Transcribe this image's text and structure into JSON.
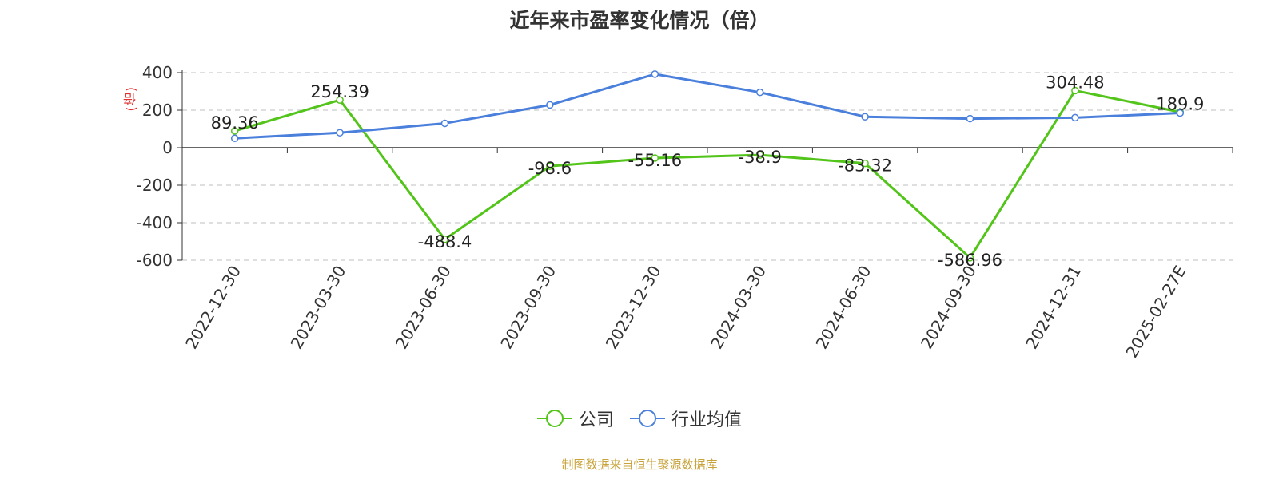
{
  "chart_data": {
    "type": "line",
    "title": "近年来市盈率变化情况（倍）",
    "ylabel": "(倍)",
    "categories": [
      "2022-12-30",
      "2023-03-30",
      "2023-06-30",
      "2023-09-30",
      "2023-12-30",
      "2024-03-30",
      "2024-06-30",
      "2024-09-30",
      "2024-12-31",
      "2025-02-27E"
    ],
    "y_ticks": [
      "400",
      "200",
      "0",
      "-200",
      "-400",
      "-600"
    ],
    "ylim": [
      -600,
      400
    ],
    "grid": true,
    "legend_position": "bottom",
    "series": [
      {
        "name": "公司",
        "color": "#52c41a",
        "values": [
          89.36,
          254.39,
          -488.4,
          -98.6,
          -55.16,
          -38.9,
          -83.32,
          -586.96,
          304.48,
          189.9
        ],
        "labels": [
          "89.36",
          "254.39",
          "-488.4",
          "-98.6",
          "-55.16",
          "-38.9",
          "-83.32",
          "-586.96",
          "304.48",
          "189.9"
        ]
      },
      {
        "name": "行业均值",
        "color": "#4a7fdc",
        "values": [
          50,
          80,
          130,
          228,
          392,
          295,
          165,
          155,
          160,
          185
        ]
      }
    ]
  },
  "source": "制图数据来自恒生聚源数据库"
}
